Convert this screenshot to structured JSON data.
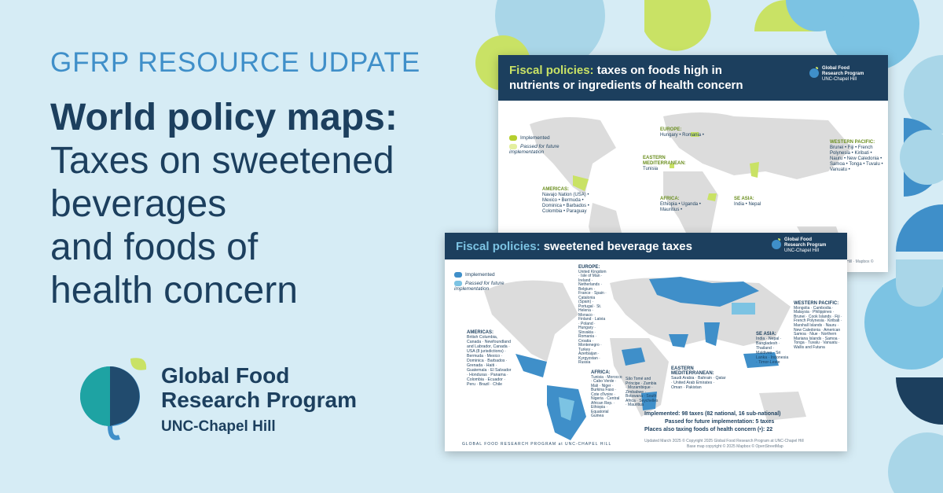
{
  "kicker": "GFRP RESOURCE UDPATE",
  "headline": {
    "bold": "World policy maps:",
    "lines": [
      "Taxes on sweetened",
      "beverages",
      "and foods of",
      "health concern"
    ]
  },
  "logo": {
    "name_line1": "Global Food",
    "name_line2": "Research Program",
    "affiliation": "UNC-Chapel Hill"
  },
  "card_foods": {
    "title_accent": "Fiscal policies:",
    "title_rest_1": "taxes on foods high in",
    "title_rest_2": "nutrients or ingredients of health concern",
    "logo_l1": "Global Food",
    "logo_l2": "Research Program",
    "logo_l3": "UNC-Chapel Hill",
    "legend_implemented": "Implemented",
    "legend_future": "Passed for future implementation",
    "regions": {
      "europe": {
        "heading": "EUROPE:",
        "items": "Hungary • Romania •"
      },
      "emed": {
        "heading": "EASTERN MEDITERRANEAN:",
        "items": "Tunisia"
      },
      "americas": {
        "heading": "AMERICAS:",
        "items": "Navajo Nation (USA) • Mexico • Bermuda • Dominica • Barbados • Colombia • Paraguay"
      },
      "africa": {
        "heading": "AFRICA:",
        "items": "Ethiopia • Uganda • Mauritius •"
      },
      "seasia": {
        "heading": "SE ASIA:",
        "items": "India • Nepal"
      },
      "wpac": {
        "heading": "WESTERN PACIFIC:",
        "items": "Brunei • Fiji • French Polynesia • Kiribati • Nauru • New Caledonia • Samoa • Tonga • Tuvalu • Vanuatu •"
      }
    },
    "foot": "at UNC-Chapel Hill · Mapbox © OpenStreetMap"
  },
  "card_bev": {
    "title_accent": "Fiscal policies:",
    "title_rest": "sweetened beverage taxes",
    "logo_l1": "Global Food",
    "logo_l2": "Research Program",
    "logo_l3": "UNC-Chapel Hill",
    "legend_implemented": "Implemented",
    "legend_future": "Passed for future implementation",
    "regions": {
      "europe": {
        "heading": "EUROPE:",
        "items": "United Kingdom · Isle of Man · Ireland · Netherlands · Belgium · France · Spain · Catalonia (Spain) · Portugal · St. Helena · Monaco · Finland · Latvia · Poland · Hungary · Slovakia · Romania · Croatia · Montenegro · Turkey · Azerbaijan · Kyrgyzstan · Russia"
      },
      "americas": {
        "heading": "AMERICAS:",
        "items": "British Columbia, Canada · Newfoundland and Labrador, Canada · USA (8 jurisdictions) · Bermuda · Mexico · Dominica · Barbados · Grenada · Haiti · Guatemala · El Salvador · Honduras · Panama · Colombia · Ecuador · Peru · Brazil · Chile"
      },
      "africa": {
        "heading": "AFRICA:",
        "items": "Tunisia · Morocco · Cabo Verde · Mali · Niger · Burkina Faso · Cote d'Ivoire · Nigeria · Central African Rep. · Ethiopia · Equatorial Guinea"
      },
      "africa2": {
        "heading": "",
        "items": "São Tomé and Príncipe · Zambia · Mozambique · Zimbabwe · Botswana · South Africa · Seychelles · Mauritius"
      },
      "emed": {
        "heading": "EASTERN MEDITERRANEAN:",
        "items": "Saudi Arabia · Bahrain · Qatar · United Arab Emirates · Oman · Pakistan"
      },
      "seasia": {
        "heading": "SE ASIA:",
        "items": "India · Nepal · Bangladesh · Thailand · Maldives · Sri Lanka · Indonesia · Timor-Leste"
      },
      "wpac": {
        "heading": "WESTERN PACIFIC:",
        "items": "Mongolia · Cambodia · Malaysia · Philippines · Brunei · Cook Islands · Fiji · French Polynesia · Kiribati · Marshall Islands · Nauru · New Caledonia · American Samoa · Niue · Northern Mariana Islands · Samoa · Tonga · Tuvalu · Vanuatu · Wallis and Futuna"
      }
    },
    "stat_implemented": "Implemented: 98 taxes (82 national, 16 sub-national)",
    "stat_future": "Passed for future implementation: 5 taxes",
    "stat_places": "Places also taxing foods of health concern (•): 22",
    "footer_brand": "GLOBAL FOOD RESEARCH PROGRAM at UNC-CHAPEL HILL",
    "footer_right_1": "Updated March 2025 © Copyright 2025 Global Food Research Program at UNC-Chapel Hill",
    "footer_right_2": "Base map copyright © 2025 Mapbox © OpenStreetMap"
  },
  "colors": {
    "navy": "#1c3f5e",
    "lime": "#c9e265",
    "blue": "#3f8fc9",
    "background": "#d6ecf5"
  }
}
